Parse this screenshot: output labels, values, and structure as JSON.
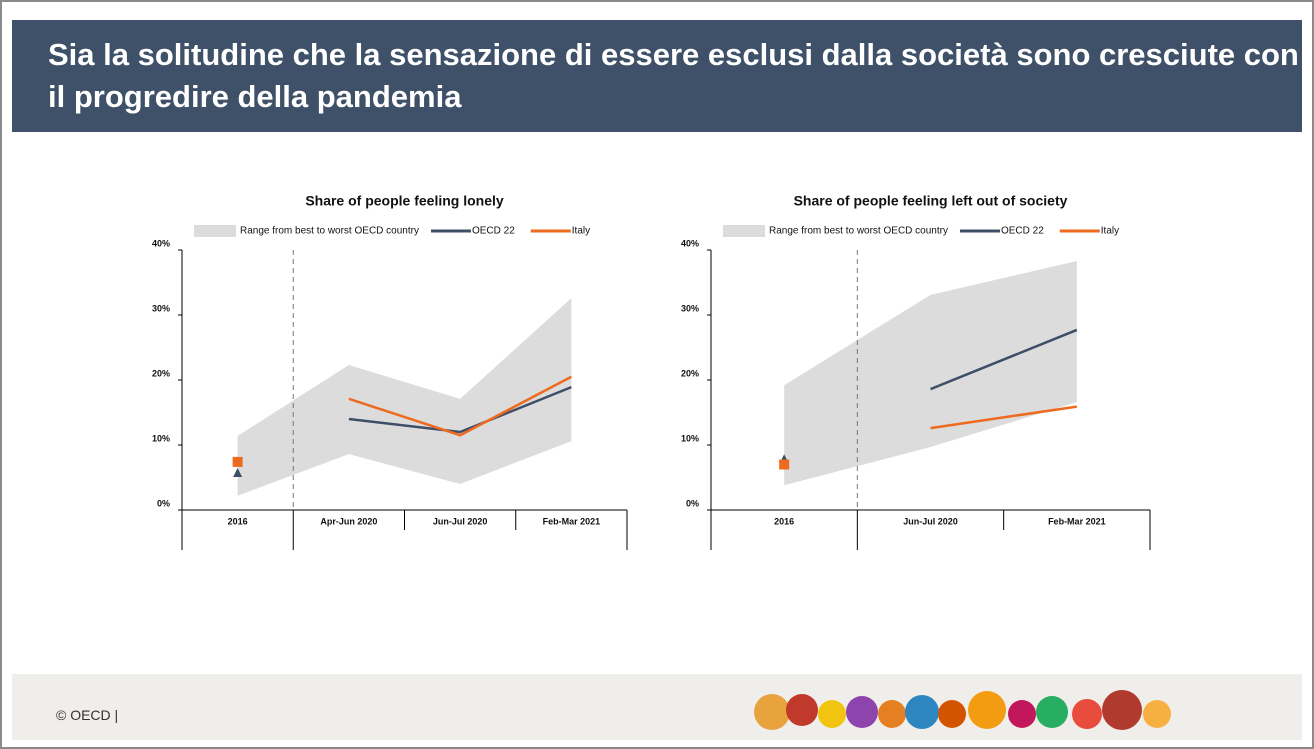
{
  "header": {
    "title": "Sia la solitudine che la sensazione di essere esclusi dalla società sono cresciute con il progredire della pandemia"
  },
  "footer": {
    "text": "© OECD |"
  },
  "chart_data": [
    {
      "type": "line",
      "title": "Share of people feeling lonely",
      "categories": [
        "2016",
        "Apr-Jun 2020",
        "Jun-Jul 2020",
        "Feb-Mar 2021"
      ],
      "divider_after_index": 0,
      "range": {
        "name": "Range from best to worst OECD country",
        "color": "#dcdcdc",
        "low": [
          2.2,
          8.6,
          4,
          10.6
        ],
        "high": [
          11.4,
          22.3,
          17.1,
          32.6
        ]
      },
      "series": [
        {
          "name": "OECD 22",
          "color": "#3d4f66",
          "marker": "triangle",
          "values": [
            5.7,
            14,
            12,
            18.9
          ]
        },
        {
          "name": "Italy",
          "color": "#ee6a1f",
          "marker": "square",
          "values": [
            7.4,
            17.1,
            11.5,
            20.5
          ]
        }
      ],
      "ylim": [
        0,
        40
      ],
      "yticks": [
        {
          "value": 0,
          "label": "0%"
        },
        {
          "value": 10,
          "label": "10%"
        },
        {
          "value": 20,
          "label": "20%"
        },
        {
          "value": 30,
          "label": "30%"
        },
        {
          "value": 40,
          "label": "40%"
        }
      ]
    },
    {
      "type": "line",
      "title": "Share of people feeling left out of society",
      "categories": [
        "2016",
        "Jun-Jul 2020",
        "Feb-Mar 2021"
      ],
      "divider_after_index": 0,
      "range": {
        "name": "Range from best to worst OECD country",
        "color": "#dcdcdc",
        "low": [
          3.8,
          9.7,
          16.6
        ],
        "high": [
          19.2,
          33.1,
          38.3
        ]
      },
      "series": [
        {
          "name": "OECD 22",
          "color": "#3d4f66",
          "marker": "triangle",
          "values": [
            7.8,
            18.6,
            27.7
          ]
        },
        {
          "name": "Italy",
          "color": "#ee6a1f",
          "marker": "square",
          "values": [
            7,
            12.6,
            15.9
          ]
        }
      ],
      "ylim": [
        0,
        40
      ],
      "yticks": [
        {
          "value": 0,
          "label": "0%"
        },
        {
          "value": 10,
          "label": "10%"
        },
        {
          "value": 20,
          "label": "20%"
        },
        {
          "value": 30,
          "label": "30%"
        },
        {
          "value": 40,
          "label": "40%"
        }
      ]
    }
  ]
}
